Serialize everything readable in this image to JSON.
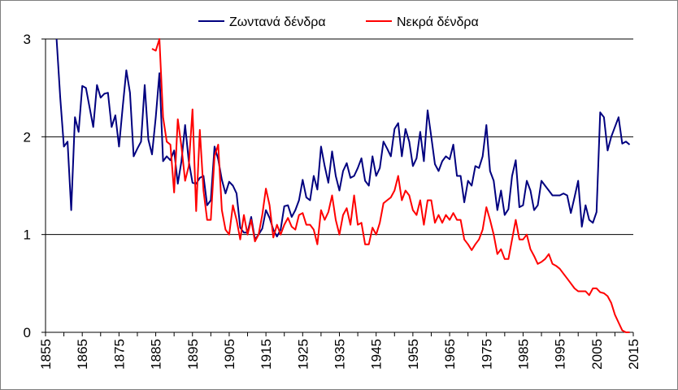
{
  "chart_data": {
    "type": "line",
    "xlim": [
      1855,
      2015
    ],
    "ylim": [
      0,
      3
    ],
    "x_ticks": [
      "1855",
      "1865",
      "1875",
      "1885",
      "1895",
      "1905",
      "1915",
      "1925",
      "1935",
      "1945",
      "1955",
      "1965",
      "1975",
      "1985",
      "1995",
      "2005",
      "2015"
    ],
    "y_ticks": [
      "0",
      "1",
      "2",
      "3"
    ],
    "grid": "horizontal",
    "legend": "top-center",
    "series": [
      {
        "name": "Ζωντανά δένδρα",
        "color": "#00007f",
        "x": [
          1858,
          1859,
          1860,
          1861,
          1862,
          1863,
          1864,
          1865,
          1866,
          1867,
          1868,
          1869,
          1870,
          1871,
          1872,
          1873,
          1874,
          1875,
          1876,
          1877,
          1878,
          1879,
          1880,
          1881,
          1882,
          1883,
          1884,
          1885,
          1886,
          1887,
          1888,
          1889,
          1890,
          1891,
          1892,
          1893,
          1894,
          1895,
          1896,
          1897,
          1898,
          1899,
          1900,
          1901,
          1902,
          1903,
          1904,
          1905,
          1906,
          1907,
          1908,
          1909,
          1910,
          1911,
          1912,
          1913,
          1914,
          1915,
          1916,
          1917,
          1918,
          1919,
          1920,
          1921,
          1922,
          1923,
          1924,
          1925,
          1926,
          1927,
          1928,
          1929,
          1930,
          1931,
          1932,
          1933,
          1934,
          1935,
          1936,
          1937,
          1938,
          1939,
          1940,
          1941,
          1942,
          1943,
          1944,
          1945,
          1946,
          1947,
          1948,
          1949,
          1950,
          1951,
          1952,
          1953,
          1954,
          1955,
          1956,
          1957,
          1958,
          1959,
          1960,
          1961,
          1962,
          1963,
          1964,
          1965,
          1966,
          1967,
          1968,
          1969,
          1970,
          1971,
          1972,
          1973,
          1974,
          1975,
          1976,
          1977,
          1978,
          1979,
          1980,
          1981,
          1982,
          1983,
          1984,
          1985,
          1986,
          1987,
          1988,
          1989,
          1990,
          1991,
          1992,
          1993,
          1994,
          1995,
          1996,
          1997,
          1998,
          1999,
          2000,
          2001,
          2002,
          2003,
          2004,
          2005,
          2006,
          2007,
          2008,
          2009,
          2010,
          2011,
          2012,
          2013,
          2014
        ],
        "values": [
          3.0,
          2.4,
          1.9,
          1.95,
          1.25,
          2.2,
          2.05,
          2.52,
          2.5,
          2.3,
          2.1,
          2.53,
          2.4,
          2.44,
          2.45,
          2.1,
          2.22,
          1.9,
          2.3,
          2.68,
          2.45,
          1.8,
          1.88,
          1.95,
          2.53,
          1.97,
          1.82,
          2.2,
          2.65,
          1.75,
          1.8,
          1.76,
          1.86,
          1.52,
          1.75,
          2.12,
          1.75,
          1.53,
          1.52,
          1.58,
          1.6,
          1.3,
          1.35,
          1.9,
          1.77,
          1.56,
          1.42,
          1.54,
          1.5,
          1.42,
          1.07,
          1.02,
          1.02,
          1.18,
          0.95,
          1.0,
          1.06,
          1.25,
          1.17,
          1.05,
          0.98,
          1.05,
          1.29,
          1.3,
          1.18,
          1.25,
          1.35,
          1.56,
          1.38,
          1.35,
          1.6,
          1.46,
          1.9,
          1.7,
          1.53,
          1.85,
          1.6,
          1.45,
          1.65,
          1.73,
          1.58,
          1.6,
          1.68,
          1.78,
          1.55,
          1.5,
          1.8,
          1.6,
          1.68,
          1.95,
          1.88,
          1.8,
          2.08,
          2.14,
          1.8,
          2.08,
          1.95,
          1.7,
          1.78,
          2.05,
          1.75,
          2.27,
          2.0,
          1.72,
          1.65,
          1.75,
          1.8,
          1.77,
          1.92,
          1.6,
          1.6,
          1.33,
          1.55,
          1.5,
          1.7,
          1.68,
          1.8,
          2.12,
          1.65,
          1.55,
          1.25,
          1.45,
          1.2,
          1.26,
          1.6,
          1.76,
          1.28,
          1.3,
          1.55,
          1.45,
          1.25,
          1.3,
          1.55,
          1.5,
          1.45,
          1.4,
          1.4,
          1.4,
          1.42,
          1.4,
          1.22,
          1.38,
          1.55,
          1.08,
          1.3,
          1.15,
          1.12,
          1.23,
          2.25,
          2.2,
          1.86,
          2.0,
          2.1,
          2.2,
          1.93,
          1.95,
          1.92
        ]
      },
      {
        "name": "Νεκρά δένδρα",
        "color": "#ff0000",
        "x": [
          1884,
          1885,
          1886,
          1887,
          1888,
          1889,
          1890,
          1891,
          1892,
          1893,
          1894,
          1895,
          1896,
          1897,
          1898,
          1899,
          1900,
          1901,
          1902,
          1903,
          1904,
          1905,
          1906,
          1907,
          1908,
          1909,
          1910,
          1911,
          1912,
          1913,
          1914,
          1915,
          1916,
          1917,
          1918,
          1919,
          1920,
          1921,
          1922,
          1923,
          1924,
          1925,
          1926,
          1927,
          1928,
          1929,
          1930,
          1931,
          1932,
          1933,
          1934,
          1935,
          1936,
          1937,
          1938,
          1939,
          1940,
          1941,
          1942,
          1943,
          1944,
          1945,
          1946,
          1947,
          1948,
          1949,
          1950,
          1951,
          1952,
          1953,
          1954,
          1955,
          1956,
          1957,
          1958,
          1959,
          1960,
          1961,
          1962,
          1963,
          1964,
          1965,
          1966,
          1967,
          1968,
          1969,
          1970,
          1971,
          1972,
          1973,
          1974,
          1975,
          1976,
          1977,
          1978,
          1979,
          1980,
          1981,
          1982,
          1983,
          1984,
          1985,
          1986,
          1987,
          1988,
          1989,
          1990,
          1991,
          1992,
          1993,
          1994,
          1995,
          1996,
          1997,
          1998,
          1999,
          2000,
          2001,
          2002,
          2003,
          2004,
          2005,
          2006,
          2007,
          2008,
          2009,
          2010,
          2011,
          2012,
          2013,
          2014
        ],
        "values": [
          2.9,
          2.88,
          3.0,
          2.2,
          1.95,
          1.92,
          1.43,
          2.18,
          1.9,
          1.55,
          1.7,
          2.28,
          1.24,
          2.07,
          1.45,
          1.15,
          1.15,
          1.8,
          1.92,
          1.25,
          1.05,
          1.0,
          1.3,
          1.15,
          0.95,
          1.2,
          1.0,
          1.15,
          0.93,
          1.0,
          1.2,
          1.47,
          1.3,
          0.97,
          1.1,
          1.0,
          1.1,
          1.17,
          1.08,
          1.05,
          1.2,
          1.22,
          1.1,
          1.1,
          1.05,
          0.9,
          1.25,
          1.15,
          1.23,
          1.4,
          1.15,
          1.0,
          1.2,
          1.27,
          1.1,
          1.4,
          1.1,
          1.12,
          0.9,
          0.9,
          1.07,
          1.0,
          1.12,
          1.32,
          1.35,
          1.38,
          1.45,
          1.6,
          1.35,
          1.45,
          1.4,
          1.25,
          1.2,
          1.35,
          1.1,
          1.35,
          1.35,
          1.12,
          1.2,
          1.12,
          1.2,
          1.15,
          1.22,
          1.15,
          1.15,
          0.95,
          0.9,
          0.84,
          0.9,
          0.95,
          1.05,
          1.28,
          1.15,
          1.0,
          0.8,
          0.85,
          0.75,
          0.75,
          0.95,
          1.15,
          0.95,
          0.95,
          1.0,
          0.85,
          0.78,
          0.7,
          0.72,
          0.75,
          0.8,
          0.7,
          0.68,
          0.65,
          0.6,
          0.55,
          0.5,
          0.45,
          0.42,
          0.42,
          0.42,
          0.38,
          0.45,
          0.45,
          0.41,
          0.4,
          0.37,
          0.3,
          0.18,
          0.1,
          0.02,
          0.0,
          0.0
        ]
      }
    ]
  }
}
